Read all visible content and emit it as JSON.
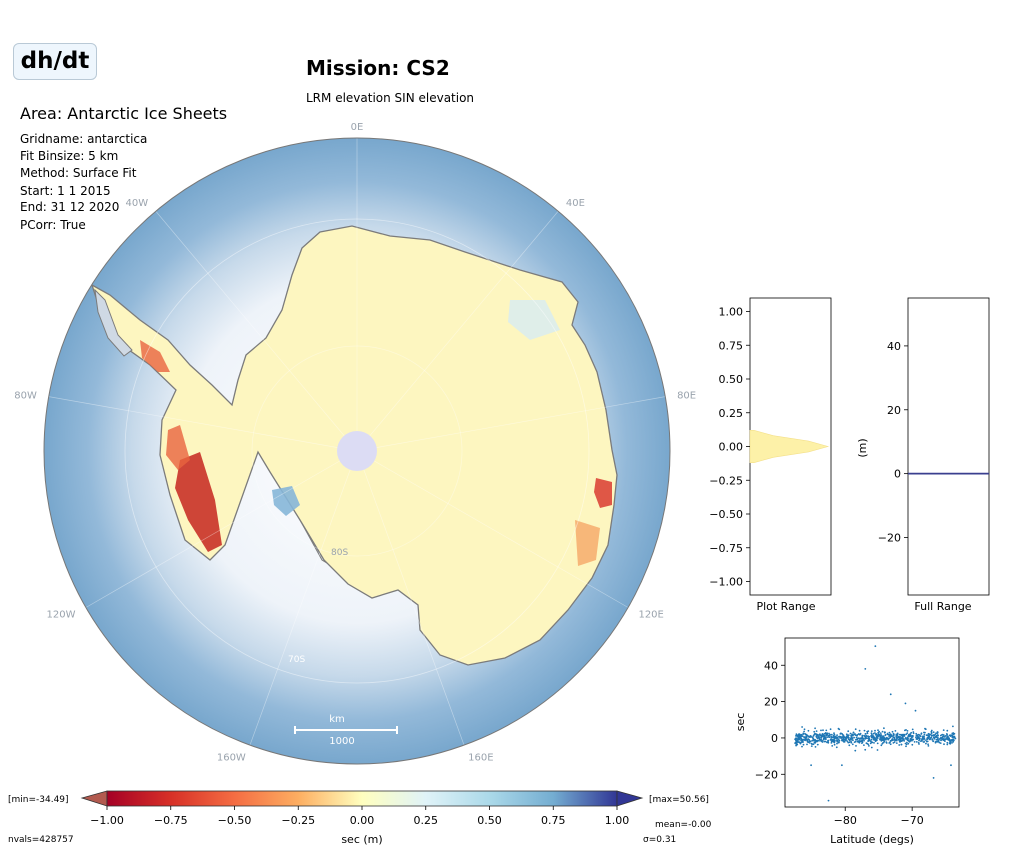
{
  "header": {
    "badge": "dh/dt",
    "mission_title": "Mission: CS2",
    "mission_subtitle": "LRM elevation SIN elevation",
    "area_title": "Area: Antarctic Ice Sheets"
  },
  "metadata": [
    "Gridname: antarctica",
    "Fit Binsize: 5 km",
    "Method: Surface Fit",
    "Start: 1 1 2015",
    "End: 31 12 2020",
    "PCorr: True"
  ],
  "map": {
    "lon_labels": [
      "0E",
      "40E",
      "80E",
      "120E",
      "160E",
      "160W",
      "120W",
      "80W",
      "40W"
    ],
    "lat_labels": [
      "80S",
      "70S"
    ],
    "scalebar_unit": "km",
    "scalebar_value": "1000",
    "colors": {
      "ocean": "#78a7cd",
      "sea_ice": "#d9e6f2",
      "ice_sheet": "#fdf6c0",
      "coastline": "#7b7b7b",
      "pole_hole": "#dcdcf4"
    }
  },
  "colorbar": {
    "ticks": [
      "−1.00",
      "−0.75",
      "−0.50",
      "−0.25",
      "0.00",
      "0.25",
      "0.50",
      "0.75",
      "1.00"
    ],
    "label": "sec (m)",
    "min_label": "[min=-34.49]",
    "max_label": "[max=50.56]",
    "mean_label": "mean=-0.00",
    "sigma_label": "σ=0.31",
    "nvals_label": "nvals=428757",
    "colors": [
      "#a50026",
      "#f46d43",
      "#fdae61",
      "#fee090",
      "#ffffbf",
      "#e0f3f8",
      "#abd9e9",
      "#74add1",
      "#313695"
    ]
  },
  "chart_data": [
    {
      "type": "area",
      "xlabel": "Plot Range",
      "ylabel": "",
      "ylim": [
        -1.1,
        1.1
      ],
      "yticks": [
        "1.00",
        "0.75",
        "0.50",
        "0.25",
        "0.00",
        "−0.25",
        "−0.50",
        "−0.75",
        "−1.00"
      ],
      "ytick_values": [
        1.0,
        0.75,
        0.5,
        0.25,
        0.0,
        -0.25,
        -0.5,
        -0.75,
        -1.0
      ],
      "y": [
        -0.12,
        -0.08,
        -0.04,
        0.0,
        0.04,
        0.08,
        0.12
      ],
      "width": [
        0.05,
        0.3,
        0.75,
        1.0,
        0.75,
        0.3,
        0.05
      ]
    },
    {
      "type": "line",
      "xlabel": "Full Range",
      "ylabel": "(m)",
      "ylim": [
        -38,
        55
      ],
      "yticks": [
        "40",
        "20",
        "0",
        "−20"
      ],
      "ytick_values": [
        40,
        20,
        0,
        -20
      ],
      "line_value": 0
    },
    {
      "type": "scatter",
      "xlabel": "Latitude (degs)",
      "ylabel": "sec",
      "xlim": [
        -89,
        -63
      ],
      "ylim": [
        -38,
        55
      ],
      "xticks": [
        "−80",
        "−70"
      ],
      "xtick_values": [
        -80,
        -70
      ],
      "yticks": [
        "40",
        "20",
        "0",
        "−20"
      ],
      "ytick_values": [
        40,
        20,
        0,
        -20
      ],
      "outliers": [
        [
          -85.1,
          -15
        ],
        [
          -82.5,
          -34.5
        ],
        [
          -77.0,
          38
        ],
        [
          -75.5,
          50.5
        ],
        [
          -73.2,
          24
        ],
        [
          -71.0,
          19
        ],
        [
          -69.5,
          15
        ],
        [
          -66.8,
          -22
        ],
        [
          -64.2,
          -15
        ],
        [
          -80.5,
          -15
        ],
        [
          -78.5,
          -7
        ]
      ]
    }
  ]
}
